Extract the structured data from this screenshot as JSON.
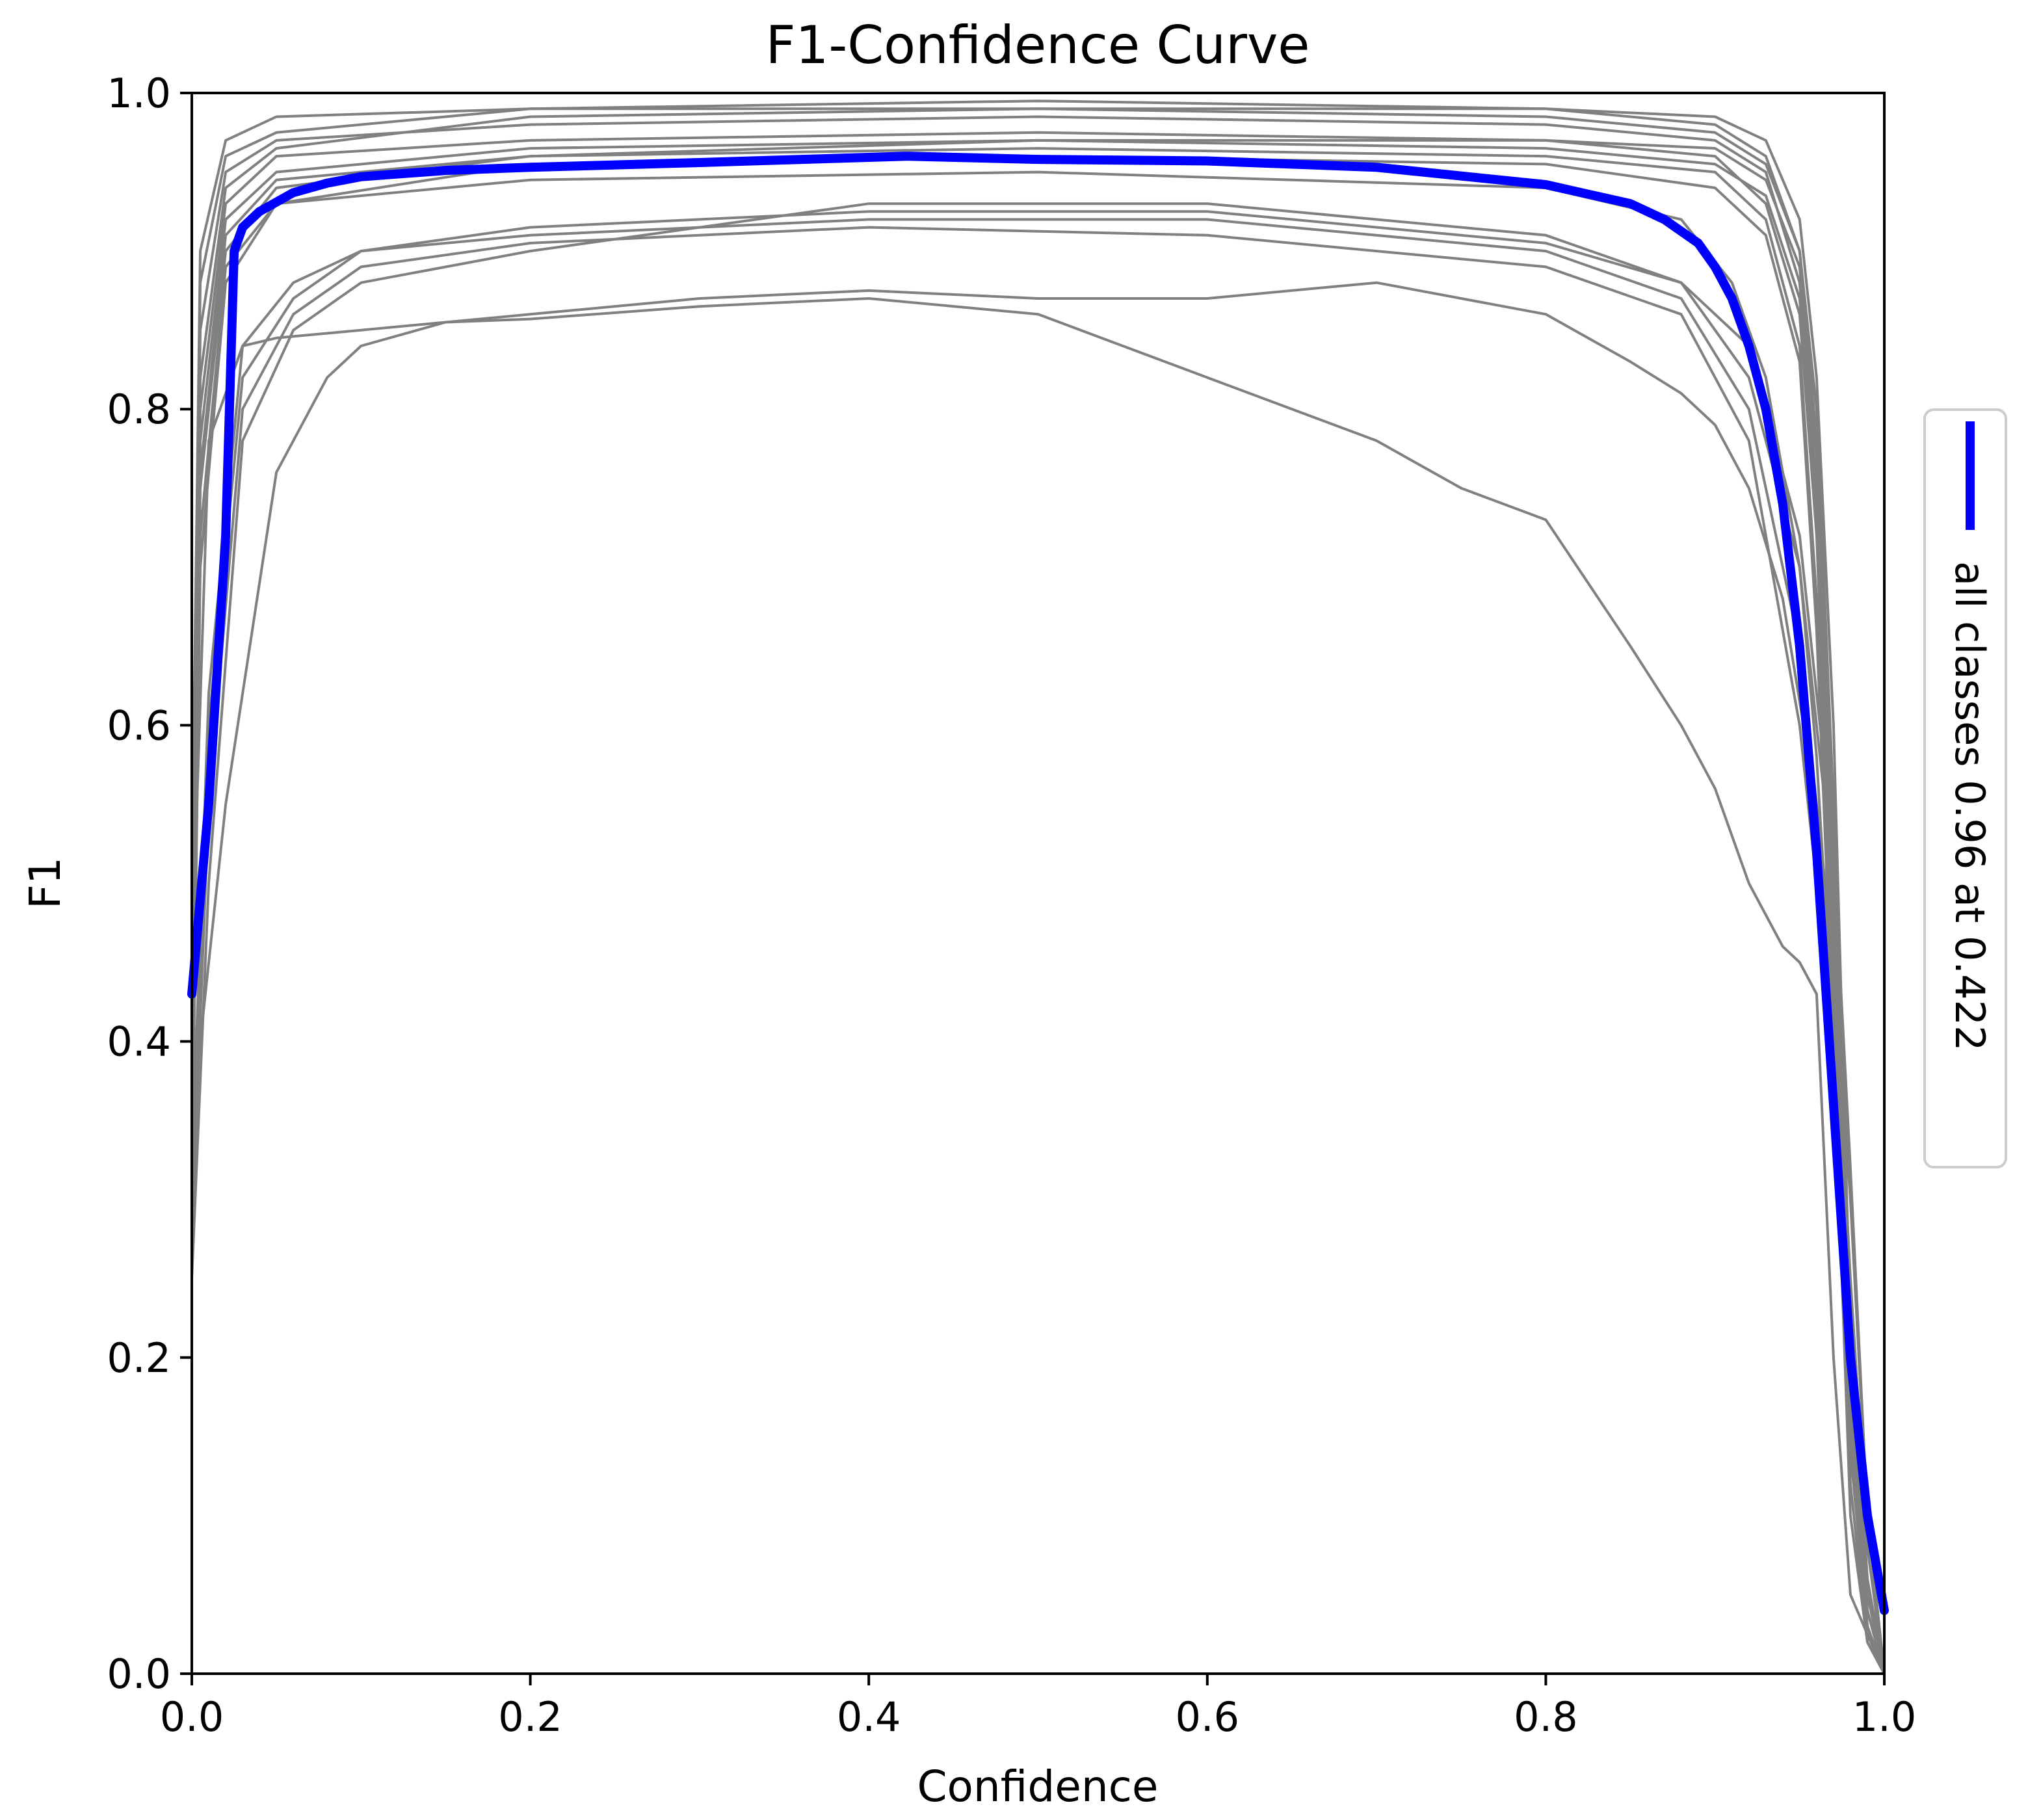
{
  "chart_data": {
    "type": "line",
    "title": "F1-Confidence Curve",
    "xlabel": "Confidence",
    "ylabel": "F1",
    "xlim": [
      0.0,
      1.0
    ],
    "ylim": [
      0.0,
      1.0
    ],
    "xticks": [
      "0.0",
      "0.2",
      "0.4",
      "0.6",
      "0.8",
      "1.0"
    ],
    "yticks": [
      "0.0",
      "0.2",
      "0.4",
      "0.6",
      "0.8",
      "1.0"
    ],
    "grid": false,
    "legend": {
      "position": "right",
      "entries": [
        "all classes 0.96 at 0.422"
      ]
    },
    "colors": {
      "per_class": "#808080",
      "all_classes": "#0000ff"
    },
    "series": [
      {
        "name": "all classes 0.96 at 0.422",
        "x": [
          0.0,
          0.01,
          0.02,
          0.025,
          0.03,
          0.04,
          0.06,
          0.08,
          0.1,
          0.15,
          0.2,
          0.3,
          0.422,
          0.5,
          0.6,
          0.7,
          0.8,
          0.85,
          0.87,
          0.89,
          0.9,
          0.91,
          0.92,
          0.93,
          0.94,
          0.95,
          0.96,
          0.97,
          0.98,
          0.99,
          1.0
        ],
        "y": [
          0.43,
          0.55,
          0.72,
          0.9,
          0.915,
          0.925,
          0.937,
          0.943,
          0.947,
          0.951,
          0.953,
          0.956,
          0.96,
          0.958,
          0.957,
          0.953,
          0.942,
          0.93,
          0.92,
          0.905,
          0.89,
          0.87,
          0.84,
          0.8,
          0.74,
          0.65,
          0.52,
          0.36,
          0.2,
          0.1,
          0.04
        ]
      },
      {
        "x": [
          0.0,
          0.005,
          0.02,
          0.05,
          0.2,
          0.5,
          0.8,
          0.9,
          0.93,
          0.95,
          0.96,
          0.97,
          0.98,
          0.99,
          1.0
        ],
        "y": [
          0.5,
          0.9,
          0.97,
          0.985,
          0.99,
          0.99,
          0.99,
          0.98,
          0.96,
          0.9,
          0.8,
          0.55,
          0.2,
          0.05,
          0.0
        ]
      },
      {
        "x": [
          0.0,
          0.005,
          0.02,
          0.05,
          0.2,
          0.5,
          0.8,
          0.9,
          0.93,
          0.95,
          0.96,
          0.97,
          0.98,
          0.99,
          1.0
        ],
        "y": [
          0.45,
          0.85,
          0.95,
          0.97,
          0.98,
          0.985,
          0.98,
          0.97,
          0.95,
          0.88,
          0.75,
          0.5,
          0.18,
          0.04,
          0.0
        ]
      },
      {
        "x": [
          0.0,
          0.005,
          0.02,
          0.05,
          0.2,
          0.5,
          0.8,
          0.9,
          0.93,
          0.95,
          0.96,
          0.97,
          0.98,
          0.99,
          1.0
        ],
        "y": [
          0.4,
          0.8,
          0.93,
          0.96,
          0.97,
          0.975,
          0.97,
          0.96,
          0.93,
          0.86,
          0.72,
          0.45,
          0.15,
          0.03,
          0.0
        ]
      },
      {
        "x": [
          0.0,
          0.005,
          0.02,
          0.05,
          0.2,
          0.5,
          0.8,
          0.9,
          0.93,
          0.95,
          0.96,
          0.97,
          0.98,
          0.99,
          1.0
        ],
        "y": [
          0.35,
          0.75,
          0.9,
          0.94,
          0.96,
          0.965,
          0.96,
          0.95,
          0.92,
          0.84,
          0.68,
          0.42,
          0.12,
          0.02,
          0.0
        ]
      },
      {
        "x": [
          0.0,
          0.005,
          0.02,
          0.05,
          0.2,
          0.5,
          0.8,
          0.9,
          0.93,
          0.95,
          0.96,
          0.97,
          0.98,
          0.99,
          1.0
        ],
        "y": [
          0.42,
          0.82,
          0.94,
          0.965,
          0.985,
          0.99,
          0.985,
          0.975,
          0.955,
          0.9,
          0.78,
          0.52,
          0.16,
          0.03,
          0.0
        ]
      },
      {
        "x": [
          0.0,
          0.005,
          0.02,
          0.05,
          0.2,
          0.5,
          0.8,
          0.9,
          0.93,
          0.95,
          0.96,
          0.97,
          0.98,
          0.99,
          1.0
        ],
        "y": [
          0.3,
          0.7,
          0.88,
          0.93,
          0.955,
          0.96,
          0.955,
          0.94,
          0.91,
          0.83,
          0.66,
          0.4,
          0.1,
          0.02,
          0.0
        ]
      },
      {
        "x": [
          0.0,
          0.01,
          0.03,
          0.06,
          0.1,
          0.2,
          0.4,
          0.6,
          0.8,
          0.88,
          0.92,
          0.95,
          0.97,
          0.98,
          0.99,
          1.0
        ],
        "y": [
          0.3,
          0.6,
          0.82,
          0.87,
          0.9,
          0.91,
          0.92,
          0.92,
          0.9,
          0.87,
          0.8,
          0.65,
          0.45,
          0.25,
          0.08,
          0.0
        ]
      },
      {
        "x": [
          0.0,
          0.01,
          0.03,
          0.06,
          0.1,
          0.2,
          0.4,
          0.6,
          0.8,
          0.88,
          0.92,
          0.95,
          0.97,
          0.98,
          0.99,
          1.0
        ],
        "y": [
          0.28,
          0.55,
          0.8,
          0.86,
          0.89,
          0.905,
          0.915,
          0.91,
          0.89,
          0.86,
          0.78,
          0.6,
          0.4,
          0.22,
          0.06,
          0.0
        ]
      },
      {
        "x": [
          0.0,
          0.01,
          0.03,
          0.06,
          0.1,
          0.2,
          0.4,
          0.6,
          0.8,
          0.88,
          0.92,
          0.95,
          0.97,
          0.98,
          0.99,
          1.0
        ],
        "y": [
          0.25,
          0.5,
          0.78,
          0.85,
          0.88,
          0.9,
          0.93,
          0.93,
          0.91,
          0.88,
          0.82,
          0.7,
          0.5,
          0.3,
          0.1,
          0.0
        ]
      },
      {
        "x": [
          0.0,
          0.02,
          0.05,
          0.08,
          0.1,
          0.15,
          0.2,
          0.3,
          0.4,
          0.5,
          0.6,
          0.7,
          0.75,
          0.8,
          0.85,
          0.88,
          0.9,
          0.92,
          0.94,
          0.95,
          0.96,
          0.97,
          0.98,
          1.0
        ],
        "y": [
          0.35,
          0.55,
          0.76,
          0.82,
          0.84,
          0.855,
          0.857,
          0.865,
          0.87,
          0.86,
          0.82,
          0.78,
          0.75,
          0.73,
          0.65,
          0.6,
          0.56,
          0.5,
          0.46,
          0.45,
          0.43,
          0.2,
          0.05,
          0.0
        ]
      },
      {
        "x": [
          0.0,
          0.01,
          0.03,
          0.05,
          0.1,
          0.2,
          0.3,
          0.4,
          0.5,
          0.6,
          0.7,
          0.8,
          0.85,
          0.88,
          0.9,
          0.92,
          0.94,
          0.96,
          0.97,
          0.98,
          0.99,
          1.0
        ],
        "y": [
          0.45,
          0.78,
          0.84,
          0.845,
          0.85,
          0.86,
          0.87,
          0.875,
          0.87,
          0.87,
          0.88,
          0.86,
          0.83,
          0.81,
          0.79,
          0.75,
          0.68,
          0.55,
          0.45,
          0.3,
          0.1,
          0.0
        ]
      },
      {
        "x": [
          0.0,
          0.005,
          0.02,
          0.05,
          0.2,
          0.5,
          0.8,
          0.9,
          0.93,
          0.95,
          0.96,
          0.97,
          0.98,
          0.99,
          1.0
        ],
        "y": [
          0.38,
          0.78,
          0.92,
          0.95,
          0.965,
          0.97,
          0.965,
          0.955,
          0.935,
          0.87,
          0.74,
          0.48,
          0.14,
          0.03,
          0.0
        ]
      },
      {
        "x": [
          0.0,
          0.005,
          0.02,
          0.05,
          0.2,
          0.5,
          0.8,
          0.88,
          0.91,
          0.93,
          0.95,
          0.96,
          0.97,
          0.98,
          0.99,
          1.0
        ],
        "y": [
          0.33,
          0.72,
          0.89,
          0.93,
          0.945,
          0.95,
          0.94,
          0.92,
          0.88,
          0.82,
          0.7,
          0.58,
          0.4,
          0.18,
          0.04,
          0.0
        ]
      },
      {
        "x": [
          0.0,
          0.005,
          0.02,
          0.05,
          0.2,
          0.5,
          0.8,
          0.9,
          0.93,
          0.95,
          0.96,
          0.97,
          0.98,
          0.99,
          1.0
        ],
        "y": [
          0.48,
          0.88,
          0.96,
          0.975,
          0.99,
          0.995,
          0.99,
          0.985,
          0.97,
          0.92,
          0.82,
          0.6,
          0.22,
          0.06,
          0.0
        ]
      },
      {
        "x": [
          0.0,
          0.01,
          0.03,
          0.06,
          0.1,
          0.2,
          0.4,
          0.6,
          0.8,
          0.88,
          0.92,
          0.95,
          0.97,
          0.98,
          0.99,
          1.0
        ],
        "y": [
          0.32,
          0.62,
          0.84,
          0.88,
          0.9,
          0.915,
          0.925,
          0.925,
          0.905,
          0.88,
          0.84,
          0.72,
          0.52,
          0.32,
          0.1,
          0.0
        ]
      },
      {
        "x": [
          0.0,
          0.005,
          0.02,
          0.05,
          0.2,
          0.5,
          0.8,
          0.9,
          0.93,
          0.95,
          0.96,
          0.97,
          0.98,
          0.99,
          1.0
        ],
        "y": [
          0.36,
          0.76,
          0.91,
          0.945,
          0.96,
          0.97,
          0.97,
          0.965,
          0.945,
          0.89,
          0.77,
          0.5,
          0.15,
          0.03,
          0.0
        ]
      }
    ]
  }
}
